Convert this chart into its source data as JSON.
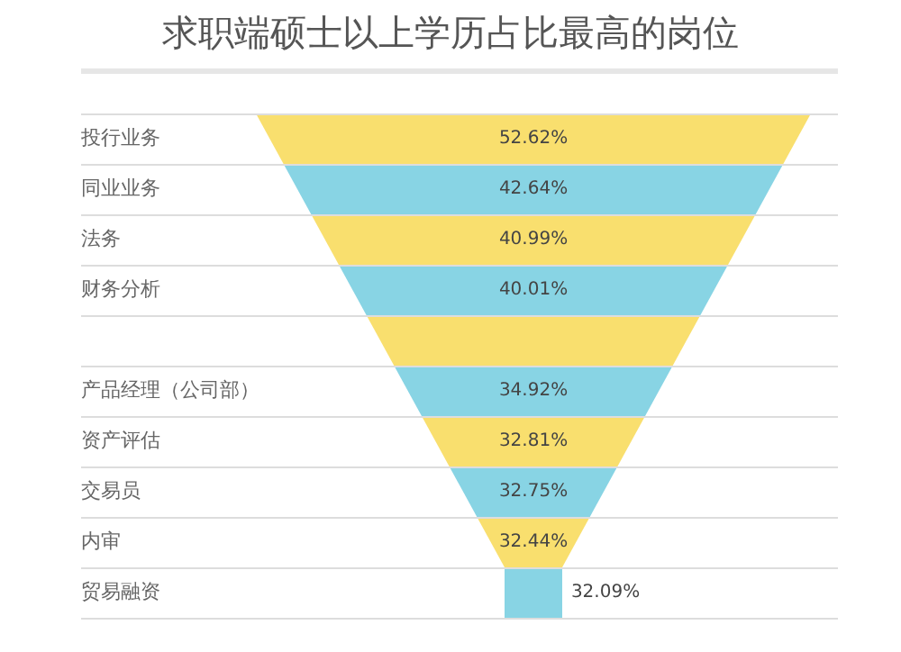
{
  "chart_data": {
    "type": "other",
    "title": "求职端硕士以上学历占比最高的岗位",
    "categories": [
      "投行业务",
      "同业业务",
      "法务",
      "财务分析",
      null,
      "产品经理（公司部）",
      "资产评估",
      "交易员",
      "内审",
      "贸易融资"
    ],
    "values": [
      52.62,
      42.64,
      40.99,
      40.01,
      null,
      34.92,
      32.81,
      32.75,
      32.44,
      32.09
    ],
    "value_labels": [
      "52.62%",
      "42.64%",
      "40.99%",
      "40.01%",
      null,
      "34.92%",
      "32.81%",
      "32.75%",
      "32.44%",
      "32.09%"
    ],
    "colors": [
      "#f9df6e",
      "#88d4e4",
      "#f9df6e",
      "#88d4e4",
      "#f9df6e",
      "#88d4e4",
      "#f9df6e",
      "#88d4e4",
      "#f9df6e",
      "#88d4e4"
    ]
  }
}
